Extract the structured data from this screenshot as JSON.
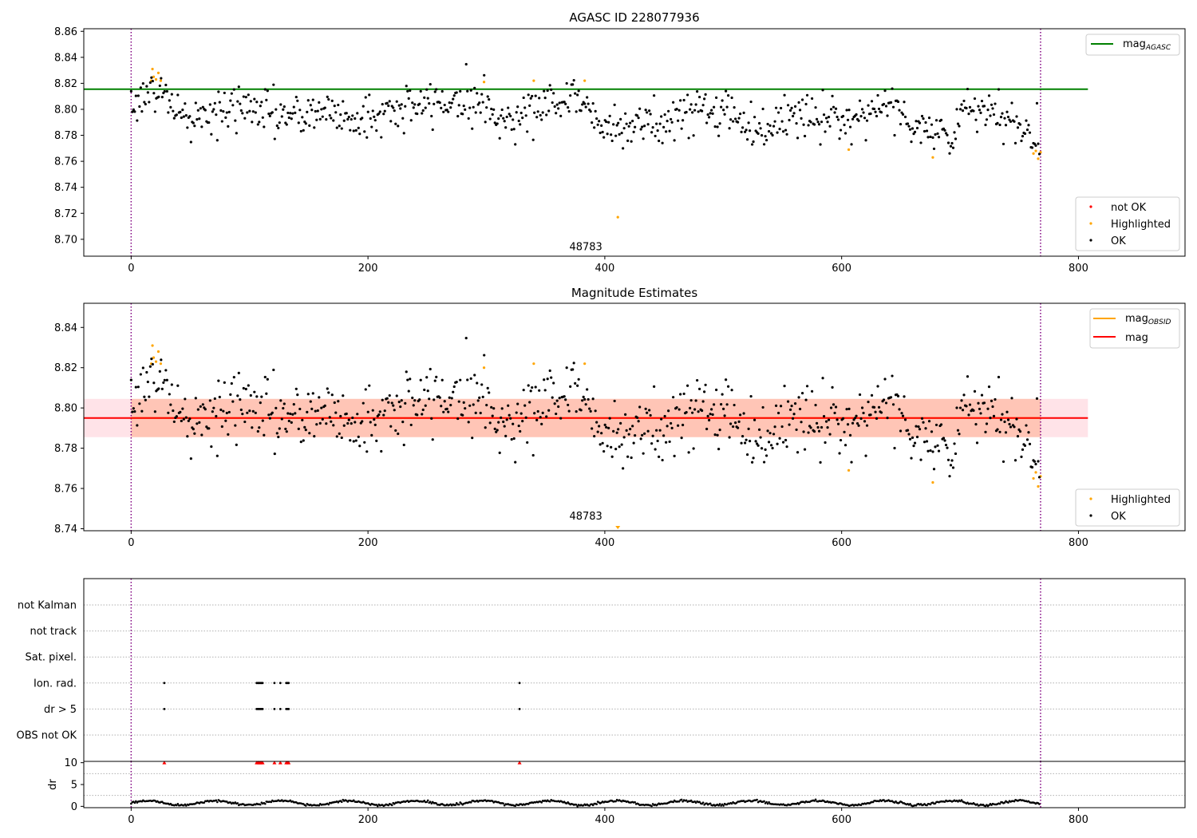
{
  "chart_data": [
    {
      "type": "scatter",
      "title": "AGASC ID 228077936",
      "xlim": [
        -40,
        890
      ],
      "ylim": [
        8.687,
        8.862
      ],
      "x_ticks": [
        0,
        200,
        400,
        600,
        800
      ],
      "y_ticks": [
        8.7,
        8.72,
        8.74,
        8.76,
        8.78,
        8.8,
        8.82,
        8.84,
        8.86
      ],
      "x_tick_labels": [
        "0",
        "200",
        "400",
        "600",
        "800"
      ],
      "y_tick_labels": [
        "8.70",
        "8.72",
        "8.74",
        "8.76",
        "8.78",
        "8.80",
        "8.82",
        "8.84",
        "8.86"
      ],
      "obsid_boundaries": [
        0,
        768
      ],
      "obsid_label": {
        "text": "48783",
        "x": 384,
        "y": 8.694
      },
      "reference_line": {
        "name": "mag_AGASC",
        "y": 8.8155,
        "x_range": [
          -40,
          808
        ],
        "color": "#008000"
      },
      "series": [
        {
          "name": "not OK",
          "color": "#ff0000",
          "points": []
        },
        {
          "name": "Highlighted",
          "color": "#ffa500",
          "points": [
            [
              17,
              8.822
            ],
            [
              18,
              8.831
            ],
            [
              19,
              8.825
            ],
            [
              21,
              8.823
            ],
            [
              23,
              8.828
            ],
            [
              25,
              8.822
            ],
            [
              298,
              8.821
            ],
            [
              340,
              8.822
            ],
            [
              383,
              8.822
            ],
            [
              411,
              8.717
            ],
            [
              606,
              8.769
            ],
            [
              677,
              8.763
            ],
            [
              762,
              8.766
            ],
            [
              764,
              8.768
            ],
            [
              766,
              8.762
            ],
            [
              768,
              8.767
            ]
          ]
        },
        {
          "name": "OK",
          "color": "#000000",
          "points": []
        }
      ],
      "ok_model": {
        "count": 760,
        "x_range": [
          0,
          767
        ],
        "base": 8.794,
        "scatter": 0.0085,
        "trend": [
          [
            0,
            8.806
          ],
          [
            25,
            8.815
          ],
          [
            45,
            8.792
          ],
          [
            80,
            8.798
          ],
          [
            100,
            8.803
          ],
          [
            140,
            8.792
          ],
          [
            160,
            8.8
          ],
          [
            190,
            8.792
          ],
          [
            230,
            8.8
          ],
          [
            260,
            8.806
          ],
          [
            295,
            8.808
          ],
          [
            310,
            8.79
          ],
          [
            330,
            8.797
          ],
          [
            360,
            8.808
          ],
          [
            380,
            8.808
          ],
          [
            395,
            8.789
          ],
          [
            440,
            8.787
          ],
          [
            470,
            8.799
          ],
          [
            500,
            8.799
          ],
          [
            530,
            8.785
          ],
          [
            560,
            8.795
          ],
          [
            600,
            8.792
          ],
          [
            640,
            8.804
          ],
          [
            660,
            8.79
          ],
          [
            690,
            8.778
          ],
          [
            705,
            8.8
          ],
          [
            730,
            8.794
          ],
          [
            755,
            8.785
          ],
          [
            767,
            8.78
          ]
        ]
      },
      "legends": [
        {
          "position": "upper right",
          "entries": [
            {
              "label": "mag",
              "subscript": "AGASC",
              "kind": "line",
              "color": "#008000"
            }
          ]
        },
        {
          "position": "lower right",
          "entries": [
            {
              "label": "not OK",
              "kind": "marker",
              "color": "#ff0000"
            },
            {
              "label": "Highlighted",
              "kind": "marker",
              "color": "#ffa500"
            },
            {
              "label": "OK",
              "kind": "marker",
              "color": "#000000"
            }
          ]
        }
      ]
    },
    {
      "type": "scatter",
      "title": "Magnitude Estimates",
      "xlim": [
        -40,
        890
      ],
      "ylim": [
        8.739,
        8.852
      ],
      "x_ticks": [
        0,
        200,
        400,
        600,
        800
      ],
      "y_ticks": [
        8.74,
        8.76,
        8.78,
        8.8,
        8.82,
        8.84
      ],
      "x_tick_labels": [
        "0",
        "200",
        "400",
        "600",
        "800"
      ],
      "y_tick_labels": [
        "8.74",
        "8.76",
        "8.78",
        "8.80",
        "8.82",
        "8.84"
      ],
      "obsid_boundaries": [
        0,
        768
      ],
      "obsid_label": {
        "text": "48783",
        "x": 384,
        "y": 8.743
      },
      "mag_line": {
        "name": "mag",
        "y": 8.795,
        "x_range": [
          -40,
          808
        ],
        "color": "#ff0000"
      },
      "mag_band": {
        "y": [
          8.7855,
          8.8045
        ],
        "x_range": [
          -40,
          808
        ],
        "color": "#ffc0cb"
      },
      "mag_obsid_line": {
        "name": "mag_OBSID",
        "y": 8.795,
        "x_range": [
          0,
          768
        ],
        "color": "#ffa500"
      },
      "mag_obsid_band": {
        "y": [
          8.7855,
          8.8045
        ],
        "x_range": [
          0,
          768
        ],
        "color": "#ffa07a"
      },
      "series": [
        {
          "name": "Highlighted",
          "color": "#ffa500",
          "points": [
            [
              17,
              8.822
            ],
            [
              18,
              8.831
            ],
            [
              19,
              8.825
            ],
            [
              21,
              8.823
            ],
            [
              23,
              8.828
            ],
            [
              25,
              8.822
            ],
            [
              298,
              8.82
            ],
            [
              340,
              8.822
            ],
            [
              383,
              8.822
            ],
            [
              411,
              8.74
            ],
            [
              606,
              8.769
            ],
            [
              677,
              8.763
            ],
            [
              762,
              8.765
            ],
            [
              764,
              8.768
            ],
            [
              766,
              8.761
            ],
            [
              768,
              8.766
            ]
          ]
        },
        {
          "name": "OK",
          "color": "#000000",
          "points": []
        }
      ],
      "legends": [
        {
          "position": "upper right",
          "entries": [
            {
              "label": "mag",
              "subscript": "OBSID",
              "kind": "line",
              "color": "#ffa500"
            },
            {
              "label": "mag",
              "kind": "line",
              "color": "#ff0000"
            }
          ]
        },
        {
          "position": "lower right",
          "entries": [
            {
              "label": "Highlighted",
              "kind": "marker",
              "color": "#ffa500"
            },
            {
              "label": "OK",
              "kind": "marker",
              "color": "#000000"
            }
          ]
        }
      ]
    },
    {
      "type": "scatter",
      "title": "",
      "xlim": [
        -40,
        890
      ],
      "flag_rows": [
        "not Kalman",
        "not track",
        "Sat. pixel.",
        "Ion. rad.",
        "dr > 5",
        "OBS not OK"
      ],
      "flag_points": {
        "Ion. rad.": [
          28,
          106,
          107,
          108,
          109,
          110,
          111,
          121,
          126,
          131,
          132,
          133,
          328
        ],
        "dr > 5": [
          28,
          106,
          107,
          108,
          109,
          110,
          111,
          121,
          126,
          131,
          132,
          133,
          328
        ]
      },
      "obsid_boundaries": [
        0,
        768
      ]
    },
    {
      "type": "scatter",
      "title": "",
      "xlim": [
        -40,
        890
      ],
      "ylim": [
        -0.3,
        10.3
      ],
      "ylabel": "dr",
      "x_ticks": [
        0,
        200,
        400,
        600,
        800
      ],
      "y_ticks": [
        0,
        5,
        10
      ],
      "x_tick_labels": [
        "0",
        "200",
        "400",
        "600",
        "800"
      ],
      "y_tick_labels": [
        "0",
        "5",
        "10"
      ],
      "obsid_boundaries": [
        0,
        768
      ],
      "clipped_marker_x": [
        28,
        106,
        107,
        108,
        109,
        110,
        111,
        121,
        126,
        131,
        132,
        133,
        328
      ],
      "clip_value": 10,
      "dr_model": {
        "count": 760,
        "x_range": [
          0,
          767
        ],
        "mean": 0.8,
        "amplitude": 0.5
      }
    }
  ]
}
